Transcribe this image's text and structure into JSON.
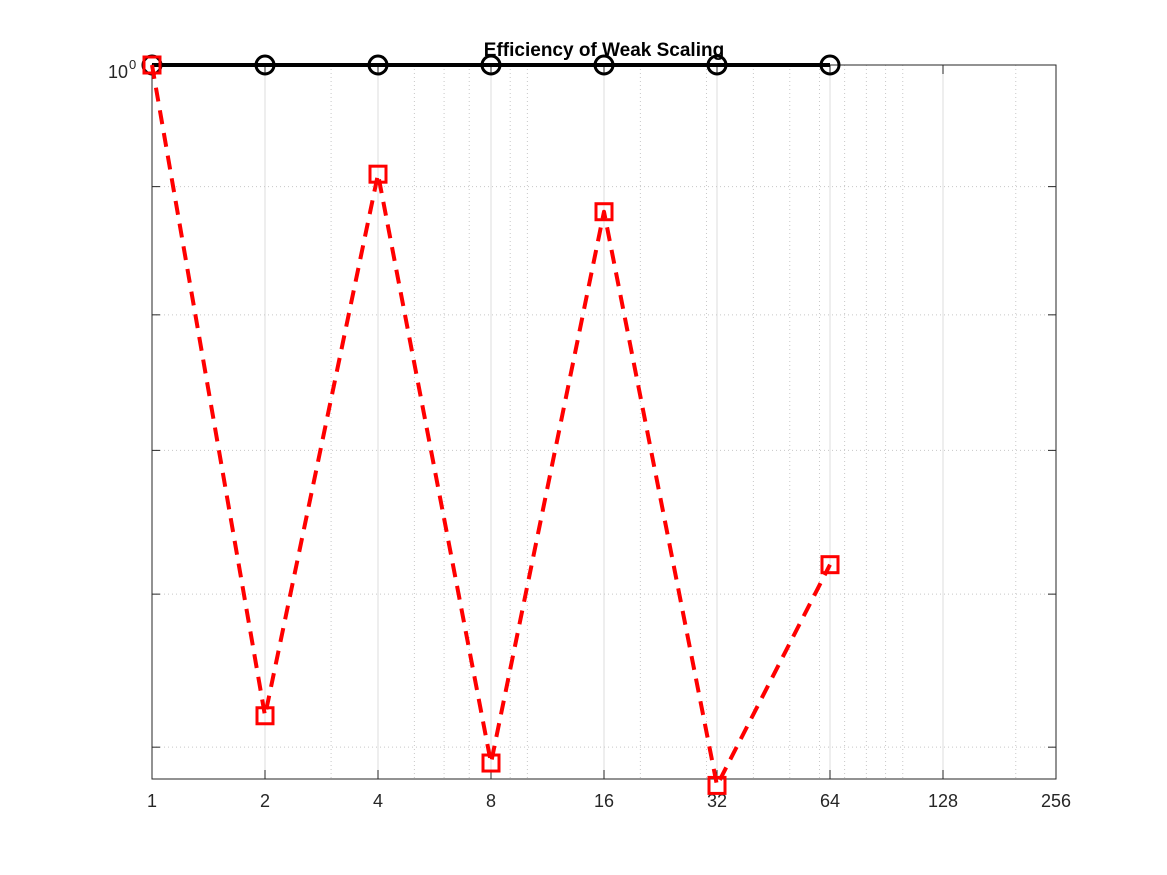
{
  "chart_data": {
    "type": "line",
    "title": "Efficiency of Weak Scaling",
    "xlabel": "",
    "ylabel": "",
    "x_scale": "log2",
    "y_scale": "log10",
    "xlim": [
      1,
      256
    ],
    "ylim": [
      0.74,
      1.0
    ],
    "grid": true,
    "x": [
      1,
      2,
      4,
      8,
      16,
      32,
      64
    ],
    "x_ticks": [
      1,
      2,
      4,
      8,
      16,
      32,
      64,
      128,
      256
    ],
    "x_tick_labels": [
      "1",
      "2",
      "4",
      "8",
      "16",
      "32",
      "64",
      "128",
      "256"
    ],
    "y_tick_label": {
      "base": "10",
      "exponent": "0"
    },
    "series": [
      {
        "values": [
          1.0,
          1.0,
          1.0,
          1.0,
          1.0,
          1.0,
          1.0
        ],
        "color": "#000000",
        "line_style": "solid",
        "marker": "circle"
      },
      {
        "values": [
          1.0,
          0.76,
          0.955,
          0.745,
          0.94,
          0.738,
          0.81
        ],
        "color": "#ff0000",
        "line_style": "dashed",
        "marker": "square"
      }
    ]
  }
}
